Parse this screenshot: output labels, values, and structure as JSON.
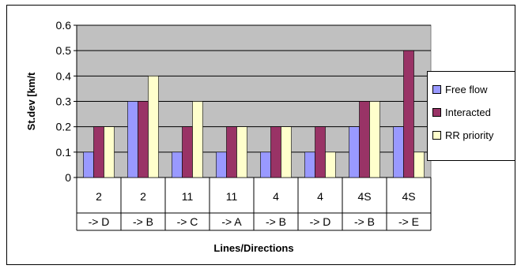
{
  "chart_data": {
    "type": "bar",
    "title": "",
    "xlabel": "Lines/Directions",
    "ylabel": "St.dev [km/t",
    "ylim": [
      0,
      0.6
    ],
    "yticks": [
      "0",
      "0.1",
      "0.2",
      "0.3",
      "0.4",
      "0.5",
      "0.6"
    ],
    "grid": true,
    "legend_position": "right",
    "plot_background": "#c0c0c0",
    "categories": [
      {
        "line": "2",
        "direction": "-> D"
      },
      {
        "line": "2",
        "direction": "-> B"
      },
      {
        "line": "11",
        "direction": "-> C"
      },
      {
        "line": "11",
        "direction": "-> A"
      },
      {
        "line": "4",
        "direction": "-> B"
      },
      {
        "line": "4",
        "direction": "-> D"
      },
      {
        "line": "4S",
        "direction": "-> B"
      },
      {
        "line": "4S",
        "direction": "-> E"
      }
    ],
    "series": [
      {
        "name": "Free flow",
        "color": "#9999ff",
        "values": [
          0.1,
          0.3,
          0.1,
          0.1,
          0.1,
          0.1,
          0.2,
          0.2
        ]
      },
      {
        "name": "Interacted",
        "color": "#993366",
        "values": [
          0.2,
          0.3,
          0.2,
          0.2,
          0.2,
          0.2,
          0.3,
          0.5
        ]
      },
      {
        "name": "RR priority",
        "color": "#ffffcc",
        "values": [
          0.2,
          0.4,
          0.3,
          0.2,
          0.2,
          0.1,
          0.3,
          0.1
        ]
      }
    ]
  }
}
